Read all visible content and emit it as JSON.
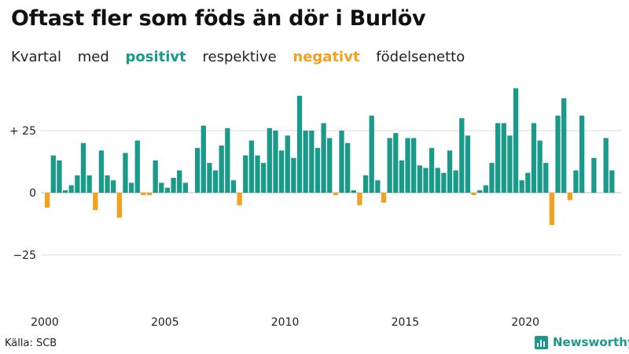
{
  "title": "Oftast fler som föds än dör i Burlöv",
  "subtitle": {
    "w1": "Kvartal",
    "w2": "med",
    "positive": "positivt",
    "w3": "respektive",
    "negative": "negativt",
    "w4": "födelsenetto"
  },
  "source": "Källa: SCB",
  "brand": "Newsworthy",
  "colors": {
    "positive": "#1a9a8a",
    "negative": "#f2a01e",
    "grid": "#d9d9d9"
  },
  "chart_data": {
    "type": "bar",
    "x_tick_labels": [
      "2000",
      "2005",
      "2010",
      "2015",
      "2020"
    ],
    "y_tick_labels": [
      "+ 25",
      "0",
      "−25"
    ],
    "ylim": [
      -45,
      45
    ],
    "y_ticks": [
      25,
      0,
      -25
    ],
    "x_ticks": [
      2000,
      2005,
      2010,
      2015,
      2020
    ],
    "start_year": 2000,
    "values": [
      -6,
      15,
      13,
      1,
      3,
      7,
      20,
      7,
      -7,
      17,
      7,
      5,
      -10,
      16,
      4,
      21,
      -1,
      -1,
      13,
      4,
      2,
      6,
      9,
      4,
      0,
      18,
      27,
      12,
      9,
      19,
      26,
      5,
      -5,
      15,
      21,
      15,
      12,
      26,
      25,
      17,
      23,
      14,
      39,
      25,
      25,
      18,
      28,
      22,
      -1,
      25,
      20,
      1,
      -5,
      7,
      31,
      5,
      -4,
      22,
      24,
      13,
      22,
      22,
      11,
      10,
      18,
      10,
      8,
      17,
      9,
      30,
      23,
      -1,
      1,
      3,
      12,
      28,
      28,
      23,
      42,
      5,
      8,
      28,
      21,
      12,
      -13,
      31,
      38,
      -3,
      9,
      31,
      0,
      14,
      0,
      22,
      9
    ]
  }
}
